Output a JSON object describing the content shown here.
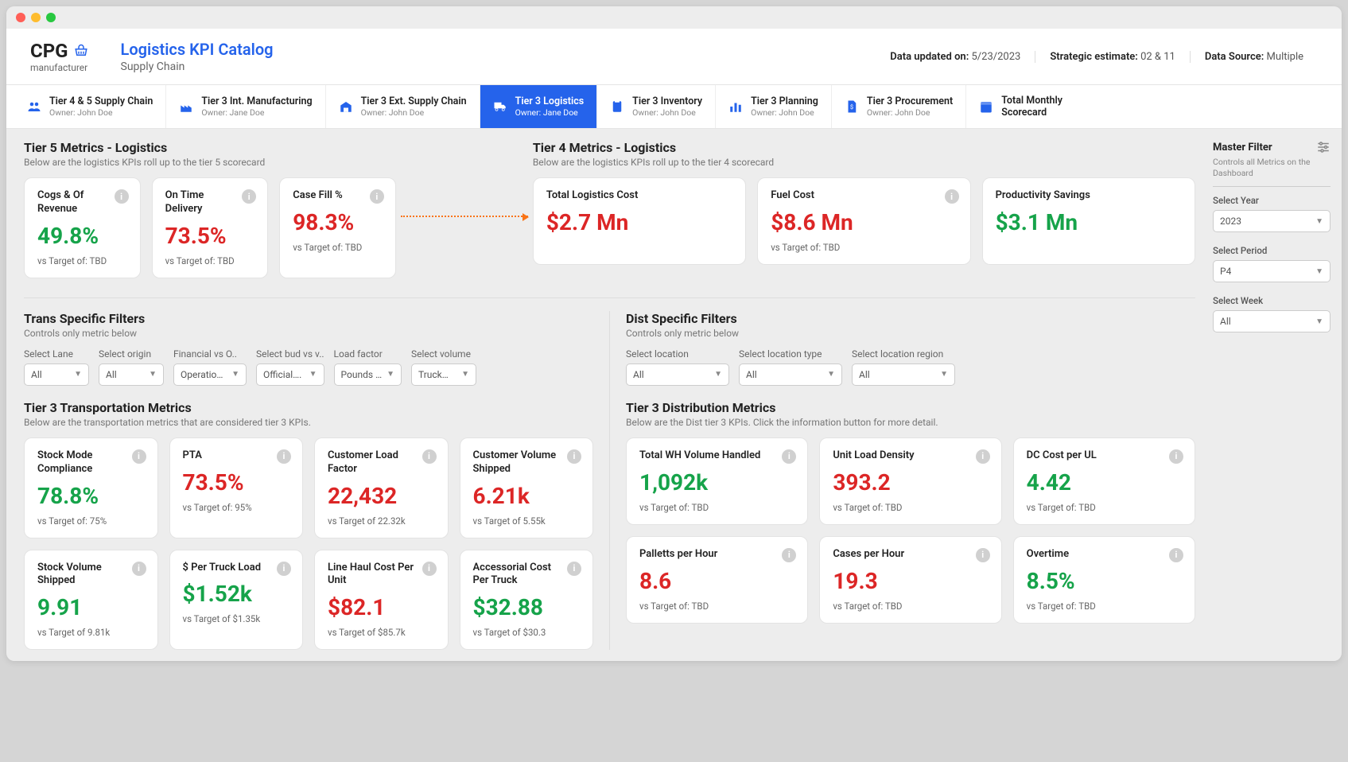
{
  "logo": {
    "text": "CPG",
    "sub": "manufacturer"
  },
  "header": {
    "title": "Logistics KPI Catalog",
    "subtitle": "Supply Chain",
    "meta": [
      {
        "label": "Data updated on:",
        "value": "5/23/2023"
      },
      {
        "label": "Strategic estimate:",
        "value": "02 & 11"
      },
      {
        "label": "Data Source:",
        "value": "Multiple"
      }
    ]
  },
  "tabs": [
    {
      "title": "Tier 4 & 5 Supply Chain",
      "owner": "Owner: John Doe"
    },
    {
      "title": "Tier 3 Int. Manufacturing",
      "owner": "Owner: Jane Doe"
    },
    {
      "title": "Tier 3 Ext. Supply Chain",
      "owner": "Owner: John Doe"
    },
    {
      "title": "Tier 3 Logistics",
      "owner": "Owner: Jane Doe"
    },
    {
      "title": "Tier 3 Inventory",
      "owner": "Owner: John Doe"
    },
    {
      "title": "Tier 3 Planning",
      "owner": "Owner: John Doe"
    },
    {
      "title": "Tier 3 Procurement",
      "owner": "Owner: John Doe"
    },
    {
      "title": "Total Monthly Scorecard",
      "owner": ""
    }
  ],
  "tier5": {
    "title": "Tier 5 Metrics - Logistics",
    "sub": "Below are the logistics KPIs roll up to the tier 5 scorecard",
    "cards": [
      {
        "title": "Cogs & Of Revenue",
        "value": "49.8%",
        "color": "green",
        "target": "vs Target of: TBD"
      },
      {
        "title": "On Time Delivery",
        "value": "73.5%",
        "color": "red",
        "target": "vs Target of: TBD"
      },
      {
        "title": "Case Fill %",
        "value": "98.3%",
        "color": "red",
        "target": "vs Target of: TBD"
      }
    ]
  },
  "tier4": {
    "title": "Tier 4 Metrics - Logistics",
    "sub": "Below are the logistics KPIs roll up to the tier 4 scorecard",
    "cards": [
      {
        "title": "Total Logistics Cost",
        "value": "$2.7 Mn",
        "color": "red",
        "target": ""
      },
      {
        "title": "Fuel Cost",
        "value": "$8.6 Mn",
        "color": "red",
        "target": "vs Target of: TBD"
      },
      {
        "title": "Productivity Savings",
        "value": "$3.1 Mn",
        "color": "green",
        "target": ""
      }
    ]
  },
  "transFilters": {
    "title": "Trans Specific Filters",
    "sub": "Controls only metric below",
    "filters": [
      {
        "label": "Select Lane",
        "value": "All"
      },
      {
        "label": "Select origin",
        "value": "All"
      },
      {
        "label": "Financial vs O..",
        "value": "Operation.."
      },
      {
        "label": "Select bud vs v..",
        "value": "Official…."
      },
      {
        "label": "Load factor",
        "value": "Pounds …"
      },
      {
        "label": "Select volume",
        "value": "Truck…"
      }
    ]
  },
  "distFilters": {
    "title": "Dist Specific Filters",
    "sub": "Controls only metric below",
    "filters": [
      {
        "label": "Select location",
        "value": "All"
      },
      {
        "label": "Select location type",
        "value": "All"
      },
      {
        "label": "Select location region",
        "value": "All"
      }
    ]
  },
  "tier3trans": {
    "title": "Tier 3 Transportation Metrics",
    "sub": "Below are the transportation metrics that are considered tier 3 KPIs.",
    "cards": [
      {
        "title": "Stock Mode Compliance",
        "value": "78.8%",
        "color": "green",
        "target": "vs Target of: 75%"
      },
      {
        "title": "PTA",
        "value": "73.5%",
        "color": "red",
        "target": "vs Target of: 95%"
      },
      {
        "title": "Customer Load Factor",
        "value": "22,432",
        "color": "red",
        "target": "vs Target of 22.32k"
      },
      {
        "title": "Customer Volume Shipped",
        "value": "6.21k",
        "color": "red",
        "target": "vs Target of 5.55k"
      },
      {
        "title": "Stock Volume Shipped",
        "value": "9.91",
        "color": "green",
        "target": "vs Target of 9.81k"
      },
      {
        "title": "$ Per Truck Load",
        "value": "$1.52k",
        "color": "green",
        "target": "vs Target of $1.35k"
      },
      {
        "title": "Line Haul Cost Per Unit",
        "value": "$82.1",
        "color": "red",
        "target": "vs Target of $85.7k"
      },
      {
        "title": "Accessorial Cost Per Truck",
        "value": "$32.88",
        "color": "green",
        "target": "vs Target of $30.3"
      }
    ]
  },
  "tier3dist": {
    "title": "Tier 3 Distribution Metrics",
    "sub": "Below are the Dist tier 3 KPIs. Click the information button for more detail.",
    "cards": [
      {
        "title": "Total WH Volume Handled",
        "value": "1,092k",
        "color": "green",
        "target": "vs Target of: TBD"
      },
      {
        "title": "Unit Load Density",
        "value": "393.2",
        "color": "red",
        "target": "vs Target of: TBD"
      },
      {
        "title": "DC Cost per UL",
        "value": "4.42",
        "color": "green",
        "target": "vs Target of: TBD"
      },
      {
        "title": "Palletts per Hour",
        "value": "8.6",
        "color": "red",
        "target": "vs Target of: TBD"
      },
      {
        "title": "Cases per Hour",
        "value": "19.3",
        "color": "red",
        "target": "vs Target of: TBD"
      },
      {
        "title": "Overtime",
        "value": "8.5%",
        "color": "green",
        "target": "vs Target of: TBD"
      }
    ]
  },
  "sidebar": {
    "master": {
      "title": "Master Filter",
      "sub": "Controls all Metrics on the Dashboard"
    },
    "filters": [
      {
        "label": "Select Year",
        "value": "2023"
      },
      {
        "label": "Select Period",
        "value": "P4"
      },
      {
        "label": "Select Week",
        "value": "All"
      }
    ]
  }
}
